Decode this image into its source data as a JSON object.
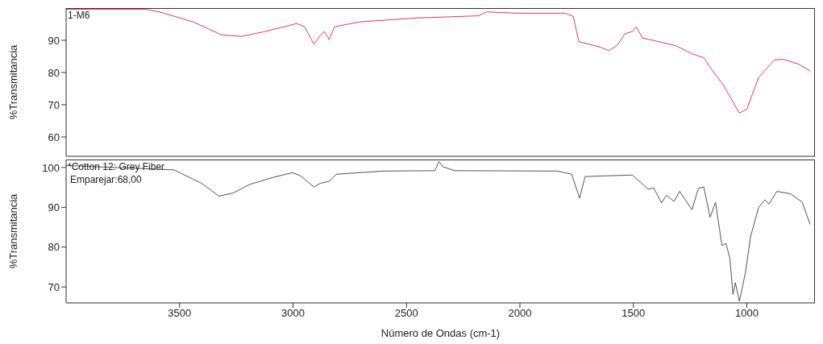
{
  "chart_data": [
    {
      "type": "line",
      "ylabel": "%Transmitancia",
      "annotations": [
        "1-M6"
      ],
      "xlim": [
        4000,
        700
      ],
      "xticks": [
        3500,
        3000,
        2500,
        2000,
        1500,
        1000
      ],
      "ylim": [
        54,
        100
      ],
      "yticks": [
        60,
        70,
        80,
        90
      ],
      "tick_labels": "y",
      "marker": "none",
      "x": [
        4000,
        3646,
        3577,
        3437,
        3315,
        3228,
        3124,
        2984,
        2949,
        2908,
        2880,
        2862,
        2841,
        2817,
        2706,
        2462,
        2183,
        2148,
        2009,
        1800,
        1765,
        1740,
        1695,
        1643,
        1608,
        1573,
        1538,
        1505,
        1488,
        1460,
        1383,
        1312,
        1242,
        1190,
        1155,
        1103,
        1033,
        1000,
        948,
        878,
        840,
        772,
        720
      ],
      "series": [
        {
          "color": "#e8365d",
          "values": [
            99.6,
            99.6,
            98.6,
            95.6,
            91.7,
            91.2,
            92.7,
            95.2,
            94.2,
            88.8,
            91.5,
            92.7,
            90.2,
            94.2,
            95.7,
            96.9,
            97.6,
            98.8,
            98.4,
            98.4,
            97.4,
            89.5,
            88.8,
            87.8,
            86.8,
            88.3,
            92.0,
            92.7,
            94.2,
            90.7,
            89.5,
            88.3,
            85.8,
            84.6,
            80.9,
            76.0,
            67.4,
            68.6,
            78.5,
            83.9,
            84.1,
            82.6,
            80.4
          ]
        }
      ]
    },
    {
      "type": "line",
      "xlabel": "Número de Ondas (cm-1)",
      "ylabel": "%Transmitancia",
      "annotations": [
        "*Cotton 12: Grey Fiber",
        "Emparejar:68,00"
      ],
      "xlim": [
        4000,
        700
      ],
      "xticks": [
        3500,
        3000,
        2500,
        2000,
        1500,
        1000
      ],
      "ylim": [
        66,
        102
      ],
      "yticks": [
        70,
        80,
        90,
        100
      ],
      "marker": "none",
      "x": [
        4000,
        3524,
        3402,
        3326,
        3263,
        3193,
        3089,
        3002,
        2967,
        2908,
        2880,
        2838,
        2810,
        2601,
        2375,
        2357,
        2340,
        2287,
        1835,
        1772,
        1737,
        1713,
        1625,
        1505,
        1434,
        1411,
        1376,
        1355,
        1321,
        1296,
        1242,
        1214,
        1190,
        1162,
        1138,
        1110,
        1092,
        1075,
        1061,
        1051,
        1033,
        1007,
        983,
        948,
        920,
        902,
        868,
        808,
        756,
        721
      ],
      "series": [
        {
          "color": "#555555",
          "values": [
            100.5,
            99.4,
            96.0,
            92.8,
            93.6,
            95.7,
            97.5,
            98.7,
            97.9,
            95.1,
            96.0,
            96.6,
            98.3,
            99.1,
            99.2,
            101.5,
            100.2,
            99.2,
            99.1,
            98.3,
            92.3,
            97.7,
            97.9,
            98.1,
            94.5,
            94.9,
            91.1,
            93.0,
            91.5,
            94.0,
            89.4,
            94.7,
            95.1,
            87.5,
            91.3,
            80.4,
            80.9,
            77.2,
            68.1,
            71.1,
            66.4,
            73.4,
            82.8,
            90.0,
            91.9,
            90.8,
            94.0,
            93.4,
            91.3,
            85.7
          ]
        }
      ]
    }
  ]
}
